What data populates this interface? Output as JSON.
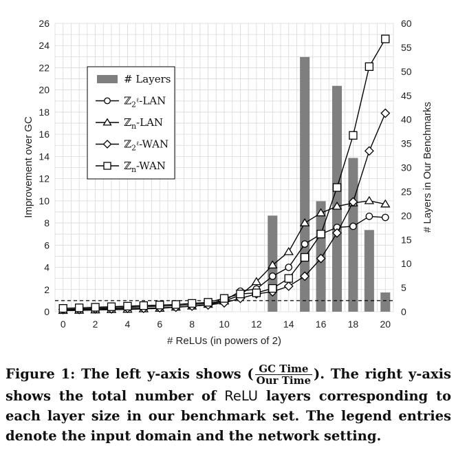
{
  "chart_data": {
    "type": "bar+line",
    "xlabel": "# ReLUs (in powers of 2)",
    "ylabel_left": "Improvement over GC",
    "ylabel_right": "# Layers in Our Benchmarks",
    "x_ticks": [
      "0",
      "2",
      "4",
      "6",
      "8",
      "10",
      "12",
      "14",
      "16",
      "18",
      "20"
    ],
    "y_left_ticks": [
      "0",
      "2",
      "4",
      "6",
      "8",
      "10",
      "12",
      "14",
      "16",
      "18",
      "20",
      "22",
      "24",
      "26"
    ],
    "y_right_ticks": [
      "0",
      "5",
      "10",
      "15",
      "20",
      "25",
      "30",
      "35",
      "40",
      "45",
      "50",
      "55",
      "60"
    ],
    "xlim": [
      -0.5,
      20.5
    ],
    "ylim_left": [
      0,
      26
    ],
    "ylim_right": [
      0,
      60
    ],
    "reference_line_y": 1,
    "bars": {
      "name": "# Layers",
      "x": [
        13,
        15,
        16,
        17,
        18,
        19,
        20
      ],
      "values": [
        20,
        53,
        23,
        47,
        32,
        17,
        4
      ]
    },
    "series": [
      {
        "name": "Z_{2^l}-LAN",
        "marker": "circle",
        "x": [
          0,
          1,
          2,
          3,
          4,
          5,
          6,
          7,
          8,
          9,
          10,
          11,
          12,
          13,
          14,
          15,
          16,
          17,
          18,
          19,
          20
        ],
        "values": [
          0.2,
          0.25,
          0.3,
          0.35,
          0.4,
          0.45,
          0.5,
          0.55,
          0.65,
          0.75,
          1.0,
          1.85,
          2.05,
          3.2,
          4.0,
          6.1,
          7.0,
          7.6,
          7.7,
          8.6,
          8.5
        ]
      },
      {
        "name": "Z_n-LAN",
        "marker": "triangle",
        "x": [
          0,
          1,
          2,
          3,
          4,
          5,
          6,
          7,
          8,
          9,
          10,
          11,
          12,
          13,
          14,
          15,
          16,
          17,
          18,
          19,
          20
        ],
        "values": [
          0.1,
          0.12,
          0.15,
          0.18,
          0.2,
          0.25,
          0.3,
          0.4,
          0.5,
          0.65,
          0.95,
          1.5,
          2.7,
          4.2,
          5.4,
          8.0,
          8.9,
          9.5,
          9.8,
          10.0,
          9.7
        ]
      },
      {
        "name": "Z_{2^l}-WAN",
        "marker": "diamond",
        "x": [
          0,
          1,
          2,
          3,
          4,
          5,
          6,
          7,
          8,
          9,
          10,
          11,
          12,
          13,
          14,
          15,
          16,
          17,
          18,
          19,
          20
        ],
        "values": [
          0.2,
          0.2,
          0.25,
          0.25,
          0.3,
          0.3,
          0.35,
          0.4,
          0.5,
          0.6,
          0.8,
          1.2,
          1.6,
          1.8,
          2.3,
          3.2,
          4.8,
          7.1,
          9.9,
          14.5,
          17.9
        ]
      },
      {
        "name": "Z_n-WAN",
        "marker": "square",
        "x": [
          0,
          1,
          2,
          3,
          4,
          5,
          6,
          7,
          8,
          9,
          10,
          11,
          12,
          13,
          14,
          15,
          16,
          17,
          18,
          19,
          20
        ],
        "values": [
          0.3,
          0.35,
          0.4,
          0.45,
          0.5,
          0.55,
          0.6,
          0.65,
          0.75,
          0.85,
          1.2,
          1.6,
          1.7,
          2.1,
          3.0,
          4.9,
          7.0,
          11.2,
          15.9,
          22.1,
          24.6
        ]
      }
    ],
    "legend": {
      "placement": "top-left",
      "entries": [
        {
          "prefix": "#",
          "label": "Layers"
        },
        {
          "sym": "ℤ",
          "sub": "2",
          "sup": "ℓ",
          "suffix": "-LAN"
        },
        {
          "sym": "ℤ",
          "sub": "n",
          "sup": "",
          "suffix": "-LAN"
        },
        {
          "sym": "ℤ",
          "sub": "2",
          "sup": "ℓ",
          "suffix": "-WAN"
        },
        {
          "sym": "ℤ",
          "sub": "n",
          "sup": "",
          "suffix": "-WAN"
        }
      ]
    },
    "grid": true,
    "colors": {
      "bar": "#7f7f7f",
      "line": "#000000",
      "grid": "#d9d9d9"
    }
  },
  "caption": {
    "prefix": "Figure 1: The left y-axis shows (",
    "frac_num": "GC Time",
    "frac_den": "Our Time",
    "middle": "). The right y-axis shows the total number of ",
    "mono_word": "ReLU",
    "suffix": " layers corresponding to each layer size in our benchmark set. The legend entries denote the input domain and the network setting."
  }
}
